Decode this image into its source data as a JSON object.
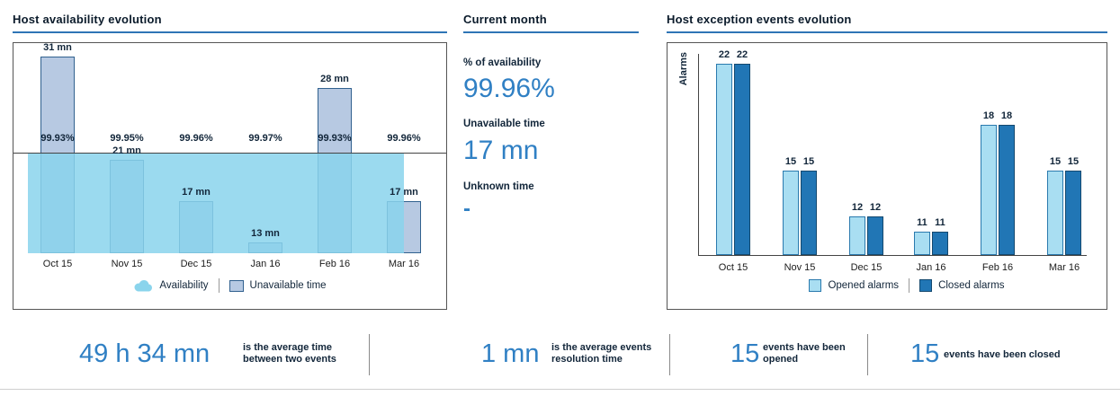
{
  "panels": {
    "availability": {
      "title": "Host availability evolution",
      "legend": {
        "availability": "Availability",
        "unavailable": "Unavailable time"
      }
    },
    "current_month": {
      "title": "Current month",
      "availability_label": "% of availability",
      "availability_value": "99.96%",
      "unavailable_label": "Unavailable time",
      "unavailable_value": "17 mn",
      "unknown_label": "Unknown time",
      "unknown_value": "-"
    },
    "exceptions": {
      "title": "Host exception events evolution",
      "ylabel": "Alarms",
      "legend": {
        "opened": "Opened alarms",
        "closed": "Closed alarms"
      }
    }
  },
  "chart_data": [
    {
      "type": "bar",
      "title": "Host availability evolution",
      "categories": [
        "Oct 15",
        "Nov 15",
        "Dec 15",
        "Jan 16",
        "Feb 16",
        "Mar 16"
      ],
      "series": [
        {
          "name": "Unavailable time",
          "type": "bar",
          "unit": "mn",
          "values": [
            31,
            21,
            17,
            13,
            28,
            17
          ],
          "labels": [
            "31 mn",
            "21 mn",
            "17 mn",
            "13 mn",
            "28 mn",
            "17 mn"
          ]
        },
        {
          "name": "Availability",
          "type": "area",
          "unit": "%",
          "values": [
            99.93,
            99.95,
            99.96,
            99.97,
            99.93,
            99.96
          ],
          "labels": [
            "99.93%",
            "99.95%",
            "99.96%",
            "99.97%",
            "99.93%",
            "99.96%"
          ]
        }
      ],
      "legend_position": "bottom",
      "grid": false,
      "bar_axis_min": 12
    },
    {
      "type": "bar",
      "title": "Host exception events evolution",
      "ylabel": "Alarms",
      "categories": [
        "Oct 15",
        "Nov 15",
        "Dec 15",
        "Jan 16",
        "Feb 16",
        "Mar 16"
      ],
      "series": [
        {
          "name": "Opened alarms",
          "values": [
            22,
            15,
            12,
            11,
            18,
            15
          ]
        },
        {
          "name": "Closed alarms",
          "values": [
            22,
            15,
            12,
            11,
            18,
            15
          ]
        }
      ],
      "legend_position": "bottom",
      "grid": false,
      "axis_min": 9.5
    }
  ],
  "footer_stats": [
    {
      "value": "49 h 34 mn",
      "label": "is the average time\nbetween two events"
    },
    {
      "value": "1 mn",
      "label": "is the average events\nresolution time"
    },
    {
      "value": "15",
      "label": "events have been\nopened"
    },
    {
      "value": "15",
      "label": "events have been closed"
    }
  ],
  "colors": {
    "accent_underline": "#2e75b6",
    "big_number_blue": "#3080c4",
    "dark_text": "#12263a",
    "availability_area": "#8ad4ec",
    "unavailable_bar_fill": "#b7c9e2",
    "unavailable_bar_border": "#31618f",
    "opened_fill": "#a9def2",
    "opened_border": "#2a7aae",
    "closed_fill": "#2176b5",
    "closed_border": "#14496f"
  }
}
